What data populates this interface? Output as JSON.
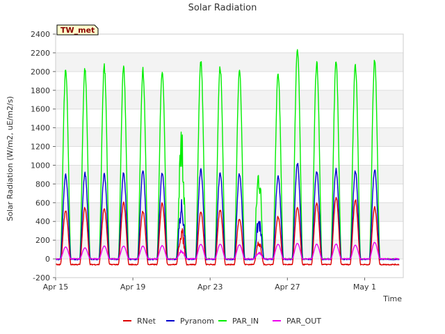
{
  "chart_data": {
    "type": "line",
    "title": "Solar Radiation",
    "xlabel": "Time",
    "ylabel": "Solar Radiation (W/m2, uE/m2/s)",
    "badge": "TW_met",
    "ylim": [
      -200,
      2400
    ],
    "yticks": [
      -200,
      0,
      200,
      400,
      600,
      800,
      1000,
      1200,
      1400,
      1600,
      1800,
      2000,
      2200,
      2400
    ],
    "xlim": [
      "2015-04-15",
      "2015-05-03"
    ],
    "xticks": [
      {
        "date": "2015-04-15",
        "label": "Apr 15"
      },
      {
        "date": "2015-04-19",
        "label": "Apr 19"
      },
      {
        "date": "2015-04-23",
        "label": "Apr 23"
      },
      {
        "date": "2015-04-27",
        "label": "Apr 27"
      },
      {
        "date": "2015-05-01",
        "label": "May 1"
      }
    ],
    "grid": true,
    "legend_position": "bottom",
    "data_start": "2015-04-15",
    "data_end": "2015-05-02",
    "daily_peaks": {
      "dates": [
        "Apr 15",
        "Apr 16",
        "Apr 17",
        "Apr 18",
        "Apr 19",
        "Apr 20",
        "Apr 21",
        "Apr 22",
        "Apr 23",
        "Apr 24",
        "Apr 25",
        "Apr 26",
        "Apr 27",
        "Apr 28",
        "Apr 29",
        "Apr 30",
        "May 1",
        "May 2"
      ],
      "RNet": [
        520,
        560,
        550,
        610,
        520,
        610,
        350,
        510,
        530,
        440,
        210,
        460,
        560,
        600,
        670,
        640,
        560,
        0
      ],
      "Pyranom": [
        920,
        930,
        920,
        930,
        950,
        930,
        640,
        970,
        930,
        920,
        460,
        900,
        1040,
        960,
        970,
        950,
        970,
        0
      ],
      "PAR_IN": [
        2040,
        2060,
        2090,
        2070,
        2050,
        2040,
        1430,
        2140,
        2090,
        2030,
        1060,
        2010,
        2300,
        2140,
        2130,
        2110,
        2170,
        0
      ],
      "PAR_OUT": [
        130,
        120,
        140,
        140,
        140,
        145,
        100,
        160,
        160,
        155,
        80,
        160,
        170,
        160,
        160,
        150,
        180,
        0
      ]
    },
    "series": [
      {
        "name": "RNet",
        "color": "#dd0000",
        "night_value": -60
      },
      {
        "name": "Pyranom",
        "color": "#0000cc",
        "night_value": -5
      },
      {
        "name": "PAR_IN",
        "color": "#00ee00",
        "night_value": 0
      },
      {
        "name": "PAR_OUT",
        "color": "#ee00ee",
        "night_value": 0
      }
    ]
  }
}
